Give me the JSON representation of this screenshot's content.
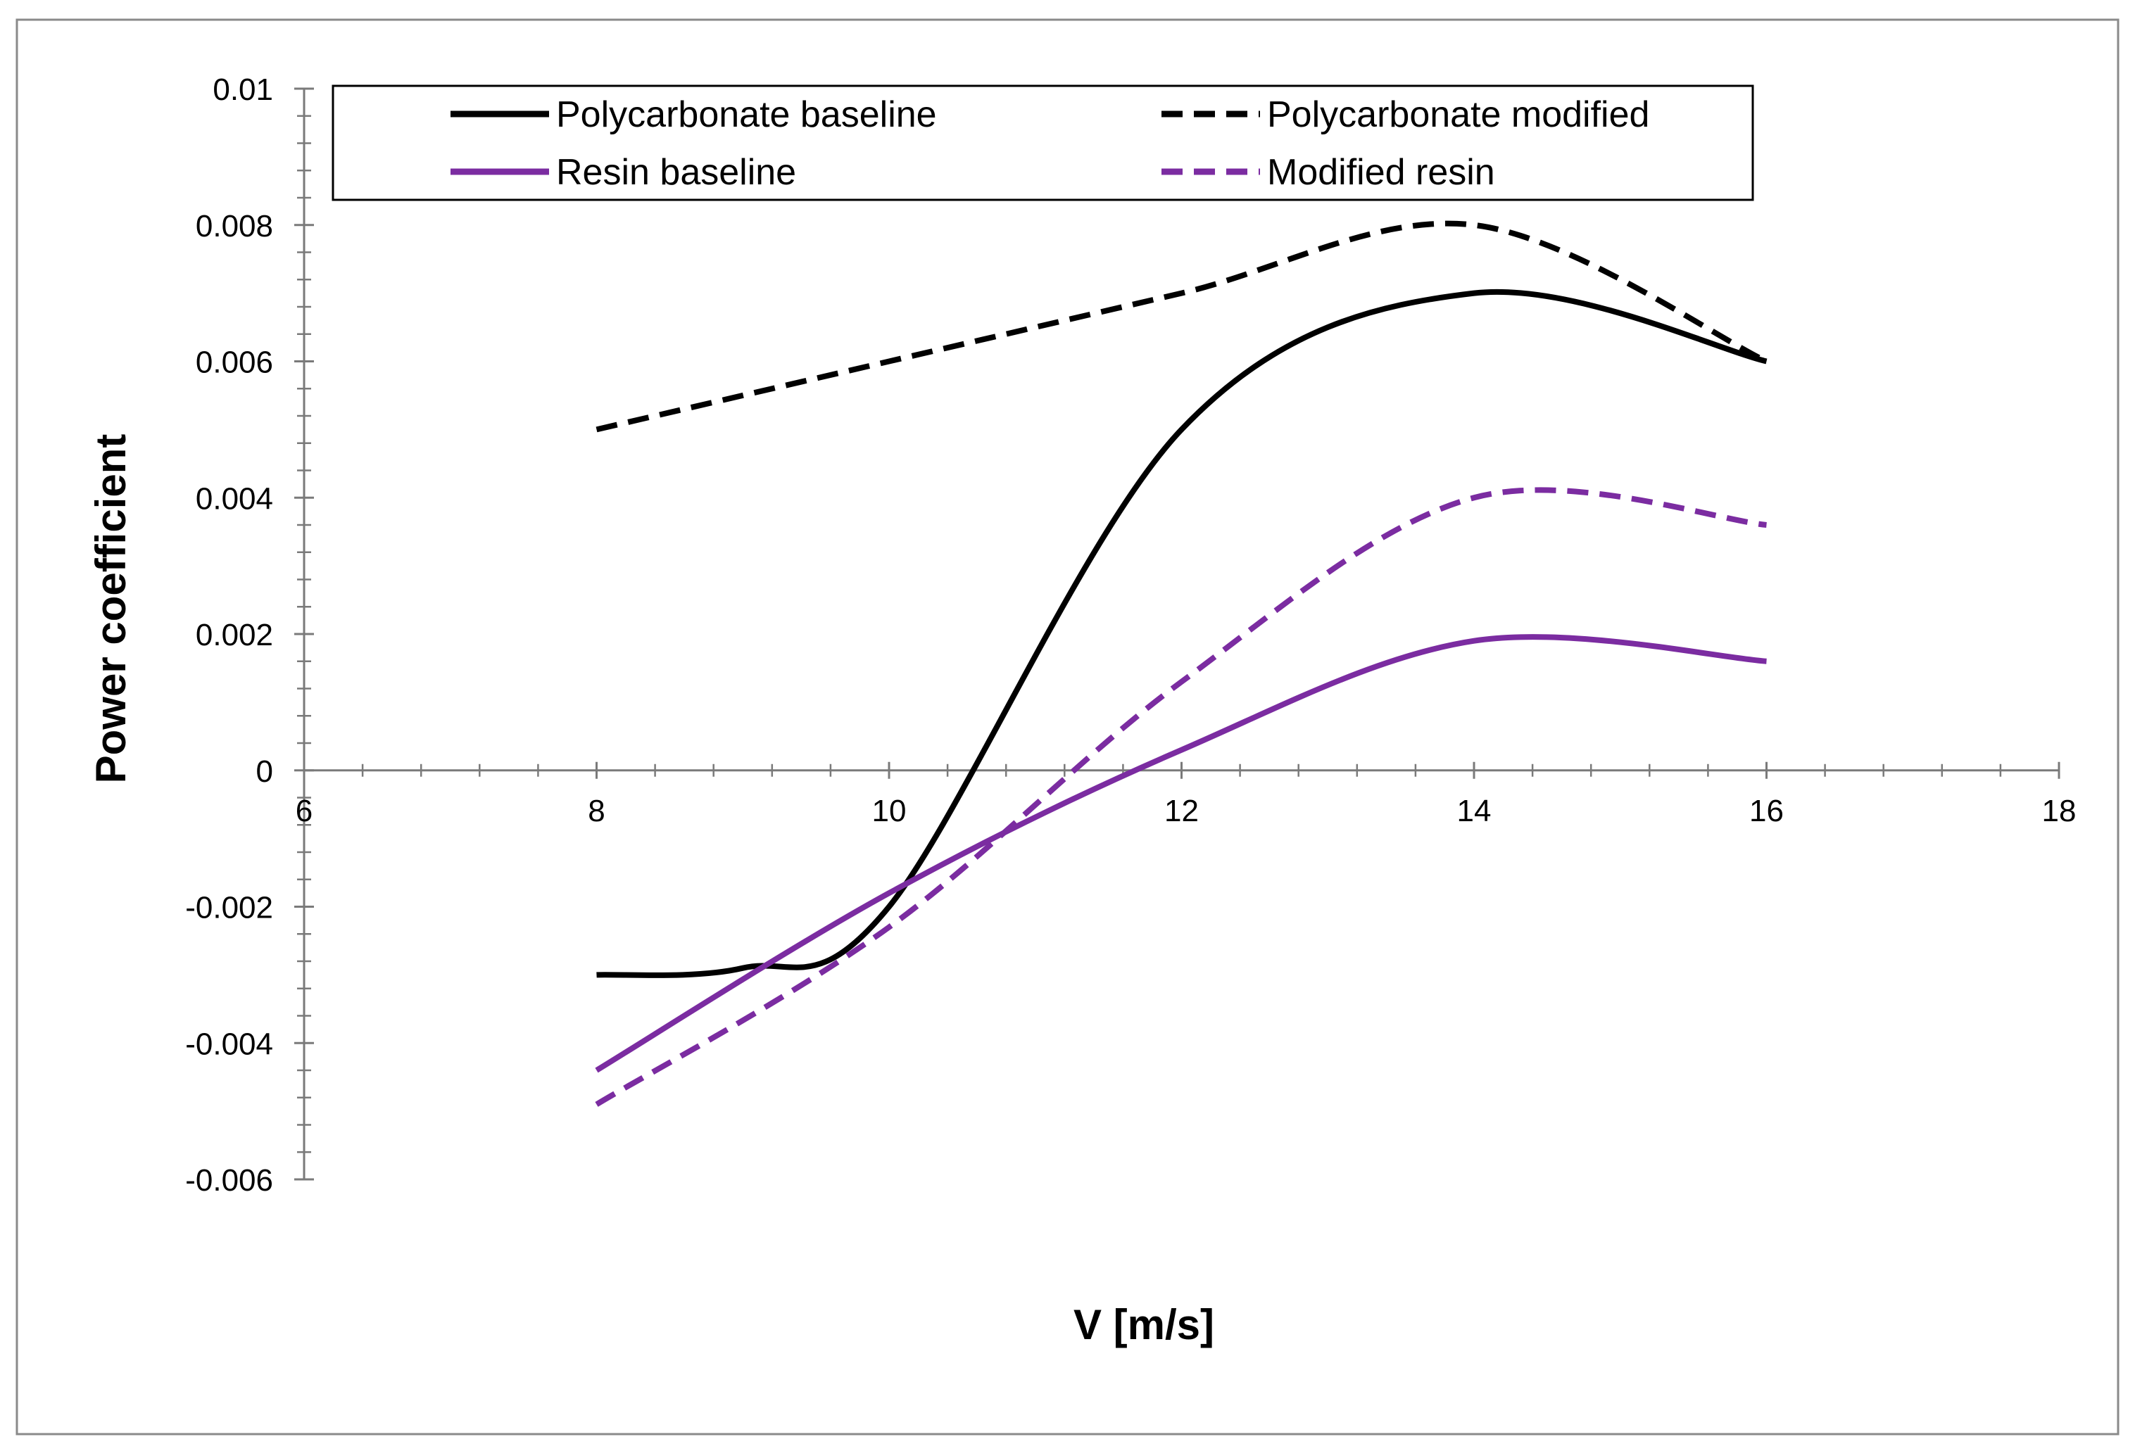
{
  "chart_data": {
    "type": "line",
    "title": "",
    "xlabel": "V [m/s]",
    "ylabel": "Power coefficient",
    "xlim": [
      6,
      18
    ],
    "ylim": [
      -0.006,
      0.01
    ],
    "x_major_step": 2,
    "x_minor_step": 0.4,
    "y_major_step": 0.002,
    "y_minor_step": 0.0004,
    "x_tick_labels": [
      "6",
      "8",
      "10",
      "12",
      "14",
      "16",
      "18"
    ],
    "y_tick_labels": [
      "0.01",
      "0.008",
      "0.006",
      "0.004",
      "0.002",
      "0",
      "-0.002",
      "-0.004",
      "-0.006"
    ],
    "grid": false,
    "legend_position": "top",
    "series": [
      {
        "name": "Polycarbonate baseline",
        "color": "#000000",
        "dash": "solid",
        "x": [
          8,
          9,
          10,
          12,
          14,
          16
        ],
        "values": [
          -0.003,
          -0.0029,
          -0.002,
          0.005,
          0.007,
          0.006
        ]
      },
      {
        "name": "Polycarbonate modified",
        "color": "#000000",
        "dash": "dashed",
        "x": [
          8,
          10,
          12,
          14,
          16
        ],
        "values": [
          0.005,
          0.006,
          0.007,
          0.008,
          0.006
        ]
      },
      {
        "name": "Resin baseline",
        "color": "#7b2ca1",
        "dash": "solid",
        "x": [
          8,
          10,
          12,
          14,
          16
        ],
        "values": [
          -0.0044,
          -0.0018,
          0.0003,
          0.0019,
          0.0016
        ]
      },
      {
        "name": "Modified resin",
        "color": "#7b2ca1",
        "dash": "dashed",
        "x": [
          8,
          10,
          12,
          14,
          16
        ],
        "values": [
          -0.0049,
          -0.0023,
          0.0013,
          0.004,
          0.0036
        ]
      }
    ]
  }
}
